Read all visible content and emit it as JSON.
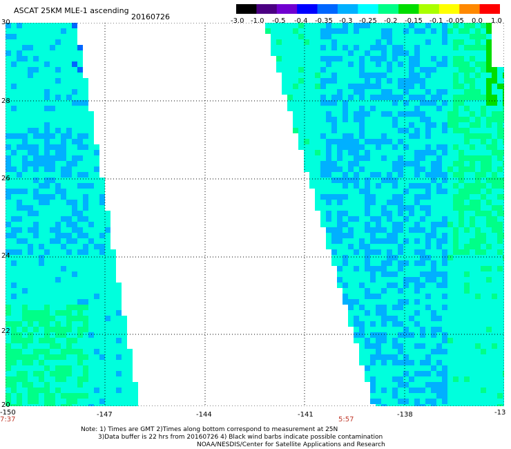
{
  "header": {
    "title": "ASCAT 25KM MLE-1 ascending",
    "date": "20160726"
  },
  "colorbar": {
    "labels": [
      "-3.0",
      "-1.0",
      "-0.5",
      "-0.4",
      "-0.35",
      "-0.3",
      "-0.25",
      "-0.2",
      "-0.15",
      "-0.1",
      "-0.05",
      "0.0",
      "1.0"
    ],
    "colors": [
      "#000000",
      "#4b0082",
      "#7000d0",
      "#0000ff",
      "#0066ff",
      "#00b0ff",
      "#00ffff",
      "#00ff88",
      "#00dd00",
      "#aaff00",
      "#ffff00",
      "#ff8800",
      "#ff0000"
    ]
  },
  "map": {
    "lat_labels": [
      "30",
      "28",
      "26",
      "24",
      "22",
      "20"
    ],
    "lon_labels": [
      "-150",
      "-147",
      "-144",
      "-141",
      "-138",
      "-13"
    ],
    "times": {
      "left": "7:37",
      "right": "5:57"
    },
    "swath_colors": {
      "dominant": "#00ffdd",
      "blue": "#00b0ff",
      "deep_blue": "#0066ff",
      "green": "#00ff88",
      "bright_green": "#00dd00"
    }
  },
  "notes": {
    "line1": "Note: 1) Times are GMT 2)Times along bottom correspond to measurement at 25N",
    "line2": "3)Data buffer is 22 hrs from 20160726 4) Black wind barbs indicate possible contamination",
    "line3": "NOAA/NESDIS/Center for Satellite Applications and Research"
  }
}
